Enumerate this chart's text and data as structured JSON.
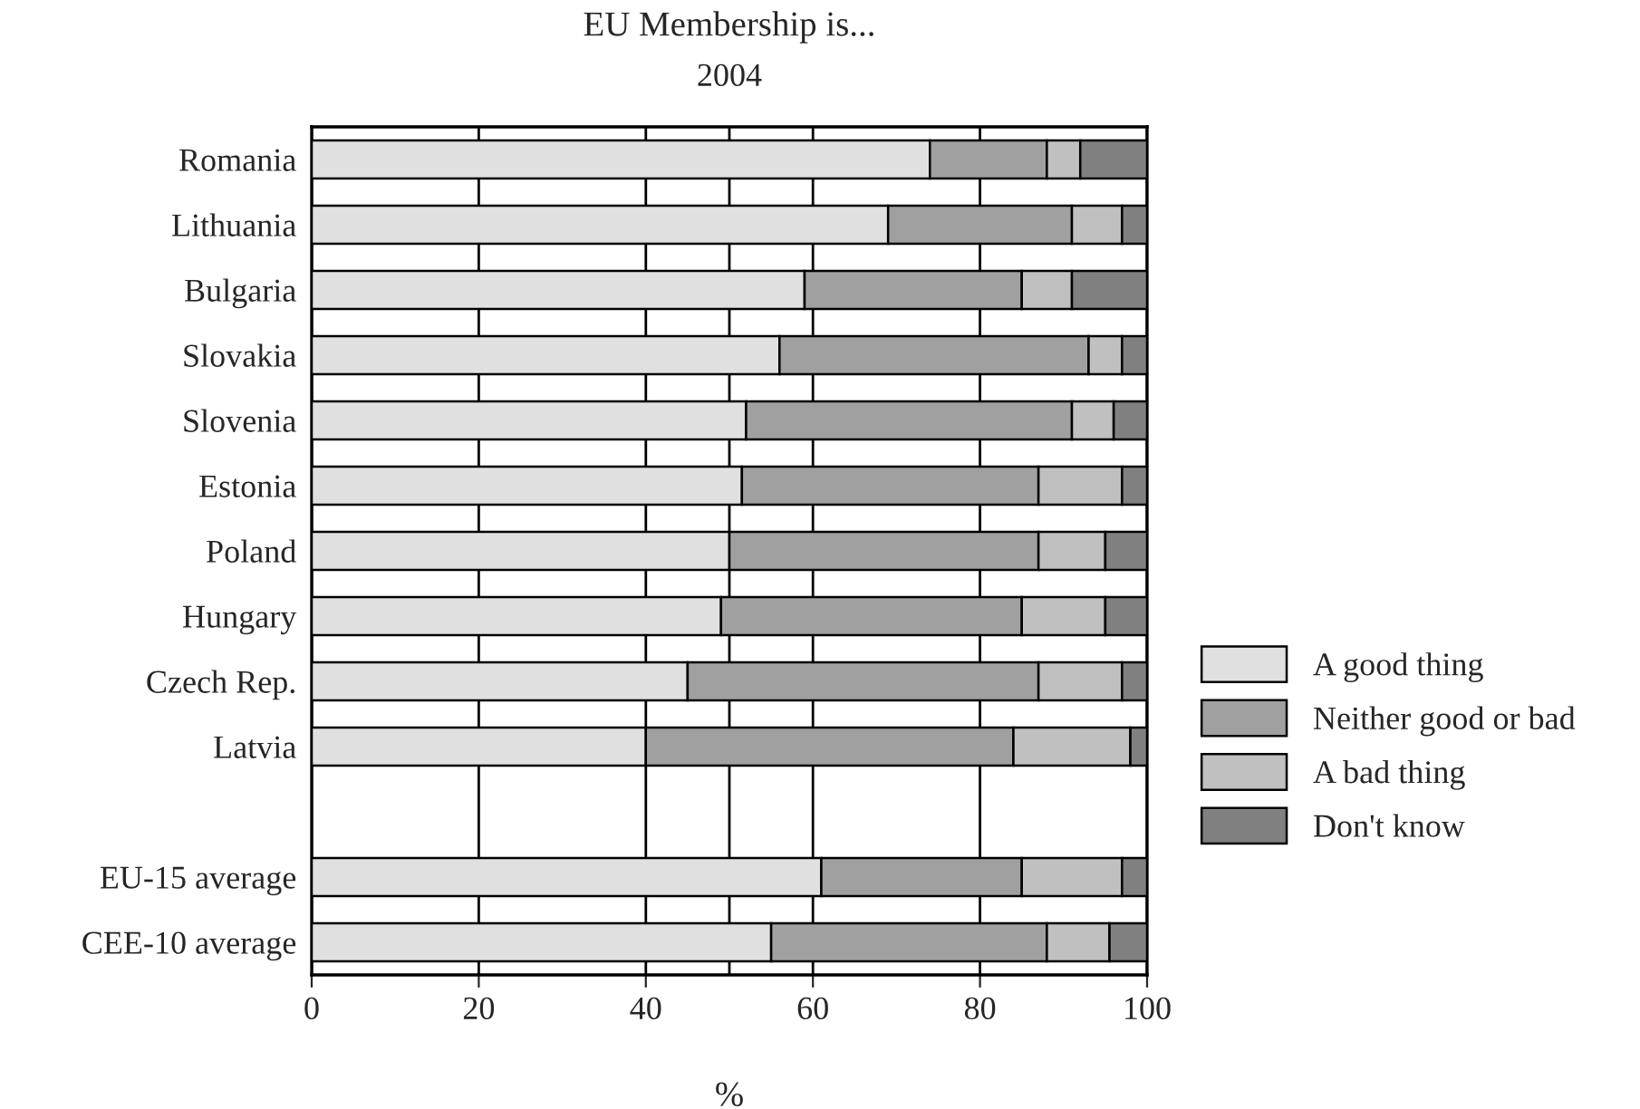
{
  "chart_data": {
    "type": "bar",
    "orientation": "horizontal",
    "stacked": true,
    "title": "EU Membership is...",
    "subtitle": "2004",
    "xlabel": "%",
    "categories": [
      "Romania",
      "Lithuania",
      "Bulgaria",
      "Slovakia",
      "Slovenia",
      "Estonia",
      "Poland",
      "Hungary",
      "Czech Rep.",
      "Latvia",
      null,
      "EU-15 average",
      "CEE-10 average"
    ],
    "series": [
      {
        "name": "A good thing",
        "color": "#e0e0e0",
        "values": [
          74,
          69,
          59,
          56,
          52,
          51.5,
          50,
          49,
          45,
          40,
          null,
          61,
          55
        ]
      },
      {
        "name": "Neither good or bad",
        "color": "#a0a0a0",
        "values": [
          14,
          22,
          26,
          37,
          39,
          35.5,
          37,
          36,
          42,
          44,
          null,
          24,
          33
        ]
      },
      {
        "name": "A bad thing",
        "color": "#c0c0c0",
        "values": [
          4,
          6,
          6,
          4,
          5,
          10,
          8,
          10,
          10,
          14,
          null,
          12,
          7.5
        ]
      },
      {
        "name": "Don't know",
        "color": "#808080",
        "values": [
          8,
          3,
          9,
          3,
          4,
          3,
          5,
          5,
          3,
          2,
          null,
          3,
          4.5
        ]
      }
    ],
    "xlim": [
      0,
      100
    ],
    "xticks": [
      0,
      20,
      40,
      60,
      80,
      100
    ],
    "ref_lines": [
      {
        "axis": "x",
        "value": 50,
        "color": "#000000"
      }
    ],
    "grid": "x",
    "legend": "bottom right"
  }
}
